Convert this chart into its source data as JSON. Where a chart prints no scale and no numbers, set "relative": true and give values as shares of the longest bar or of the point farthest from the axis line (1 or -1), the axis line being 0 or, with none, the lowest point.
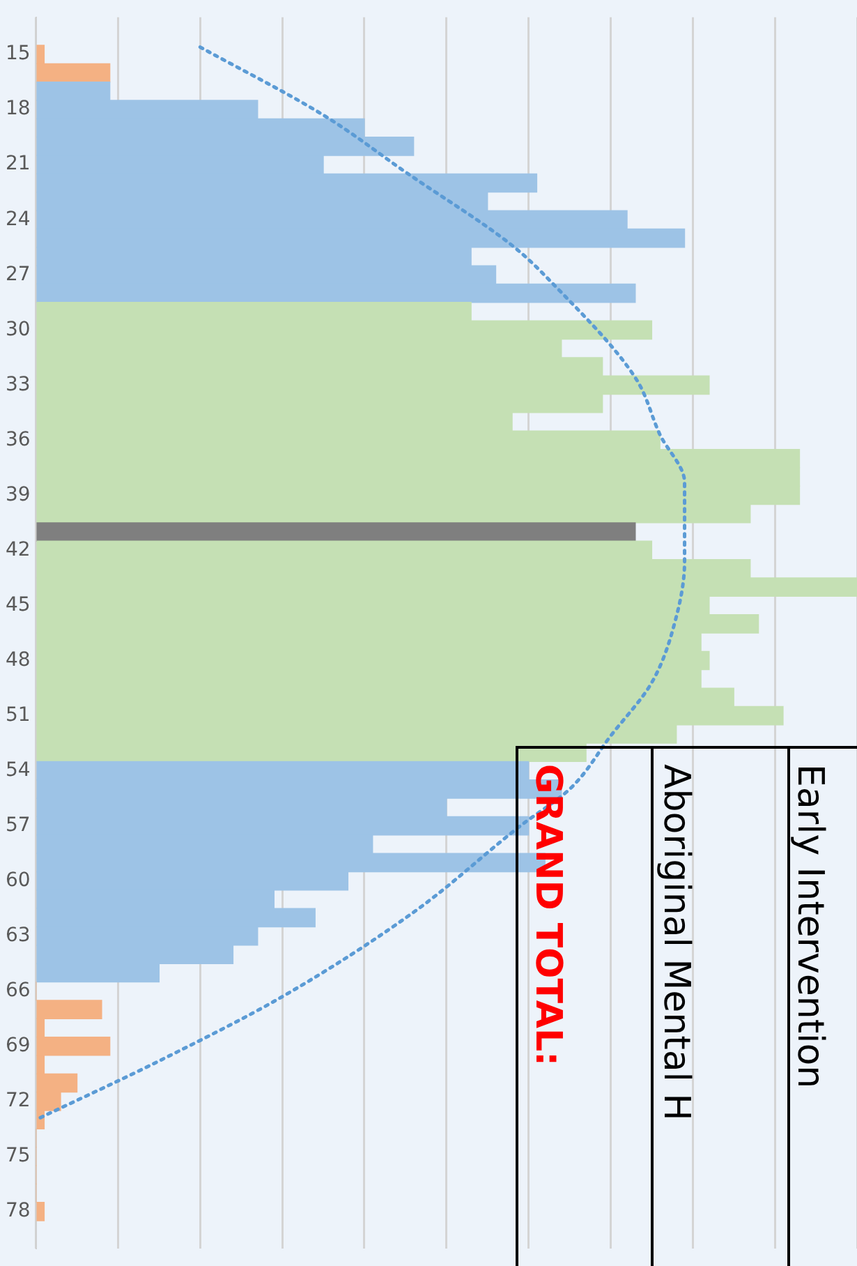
{
  "chart_data": {
    "type": "bar",
    "orientation": "horizontal",
    "relative": true,
    "grid": "x",
    "annotations": [
      "Early Intervention",
      "Aboriginal Mental H",
      "GRAND TOTAL:"
    ],
    "x": [
      15,
      16,
      17,
      18,
      19,
      20,
      21,
      22,
      23,
      24,
      25,
      26,
      27,
      28,
      29,
      30,
      31,
      32,
      33,
      34,
      35,
      36,
      37,
      38,
      39,
      40,
      41,
      42,
      43,
      44,
      45,
      46,
      47,
      48,
      49,
      50,
      51,
      52,
      53,
      54,
      55,
      56,
      57,
      58,
      59,
      60,
      61,
      62,
      63,
      64,
      65,
      66,
      67,
      68,
      69,
      70,
      71,
      72,
      73,
      74,
      75,
      76,
      77,
      78
    ],
    "ylim": [
      78.5,
      14.5
    ],
    "yticks": [
      15,
      18,
      21,
      24,
      27,
      30,
      33,
      36,
      39,
      42,
      45,
      48,
      51,
      54,
      57,
      60,
      63,
      66,
      69,
      72,
      75,
      78
    ],
    "series": [
      {
        "values": [
          0.01,
          0.09,
          0.09,
          0.27,
          0.4,
          0.46,
          0.35,
          0.61,
          0.55,
          0.72,
          0.79,
          0.53,
          0.56,
          0.73,
          0.53,
          0.75,
          0.64,
          0.69,
          0.82,
          0.69,
          0.58,
          0.76,
          0.93,
          0.93,
          0.93,
          0.87,
          0.73,
          0.75,
          0.87,
          1,
          0.82,
          0.88,
          0.81,
          0.82,
          0.81,
          0.85,
          0.91,
          0.78,
          0.67,
          0.6,
          0.64,
          0.5,
          0.6,
          0.41,
          0.62,
          0.38,
          0.29,
          0.34,
          0.27,
          0.24,
          0.15,
          0,
          0.08,
          0.01,
          0.09,
          0.01,
          0.05,
          0.03,
          0.01,
          0,
          0,
          0,
          0,
          0.01
        ],
        "colors": [
          "#f4b183",
          "#f4b183",
          "#9dc3e6",
          "#9dc3e6",
          "#9dc3e6",
          "#9dc3e6",
          "#9dc3e6",
          "#9dc3e6",
          "#9dc3e6",
          "#9dc3e6",
          "#9dc3e6",
          "#9dc3e6",
          "#9dc3e6",
          "#9dc3e6",
          "#c5e0b4",
          "#c5e0b4",
          "#c5e0b4",
          "#c5e0b4",
          "#c5e0b4",
          "#c5e0b4",
          "#c5e0b4",
          "#c5e0b4",
          "#c5e0b4",
          "#c5e0b4",
          "#c5e0b4",
          "#c5e0b4",
          "#7f7f7f",
          "#c5e0b4",
          "#c5e0b4",
          "#c5e0b4",
          "#c5e0b4",
          "#c5e0b4",
          "#c5e0b4",
          "#c5e0b4",
          "#c5e0b4",
          "#c5e0b4",
          "#c5e0b4",
          "#c5e0b4",
          "#c5e0b4",
          "#9dc3e6",
          "#9dc3e6",
          "#9dc3e6",
          "#9dc3e6",
          "#9dc3e6",
          "#9dc3e6",
          "#9dc3e6",
          "#9dc3e6",
          "#9dc3e6",
          "#9dc3e6",
          "#9dc3e6",
          "#9dc3e6",
          "#f4b183",
          "#f4b183",
          "#f4b183",
          "#f4b183",
          "#f4b183",
          "#f4b183",
          "#f4b183",
          "#f4b183",
          "#f4b183",
          "#f4b183",
          "#f4b183",
          "#f4b183",
          "#f4b183"
        ]
      },
      {
        "type": "line",
        "color": "#5b9bd5",
        "line_style": "dotted",
        "marker": "none",
        "x": [
          14.6,
          18.3,
          21.4,
          25.4,
          27.5,
          32.6,
          35.7,
          38.3,
          42.6,
          45.6,
          49.2,
          52.1,
          55,
          57,
          61.7,
          66.3,
          69.8,
          73
        ],
        "values": [
          0.2,
          0.35,
          0.45,
          0.58,
          0.63,
          0.73,
          0.76,
          0.79,
          0.79,
          0.78,
          0.75,
          0.7,
          0.65,
          0.59,
          0.46,
          0.3,
          0.15,
          0
        ]
      }
    ]
  }
}
